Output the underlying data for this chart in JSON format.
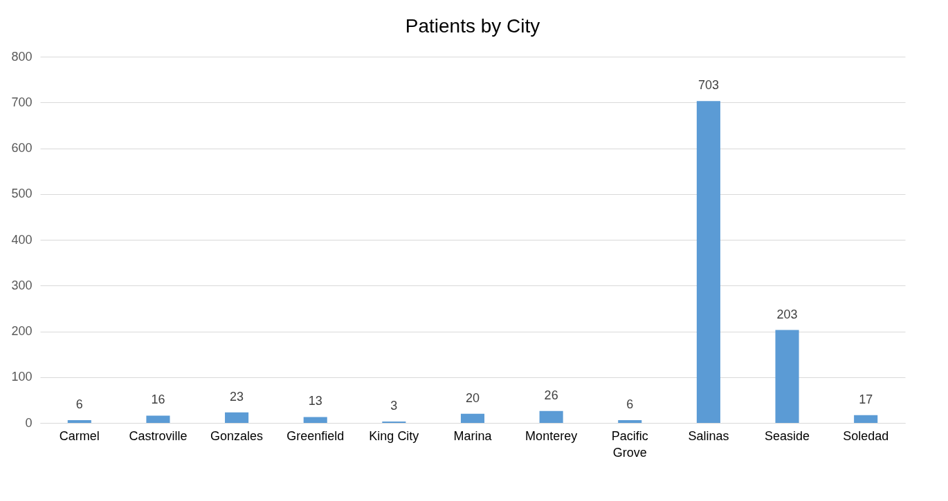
{
  "chart_data": {
    "type": "bar",
    "title": "Patients by City",
    "categories": [
      "Carmel",
      "Castroville",
      "Gonzales",
      "Greenfield",
      "King City",
      "Marina",
      "Monterey",
      "Pacific Grove",
      "Salinas",
      "Seaside",
      "Soledad"
    ],
    "values": [
      6,
      16,
      23,
      13,
      3,
      20,
      26,
      6,
      703,
      203,
      17
    ],
    "color": "#5b9bd5",
    "ylim": [
      0,
      800
    ],
    "yticks": [
      0,
      100,
      200,
      300,
      400,
      500,
      600,
      700,
      800
    ],
    "grid": "y",
    "data_labels": true
  }
}
